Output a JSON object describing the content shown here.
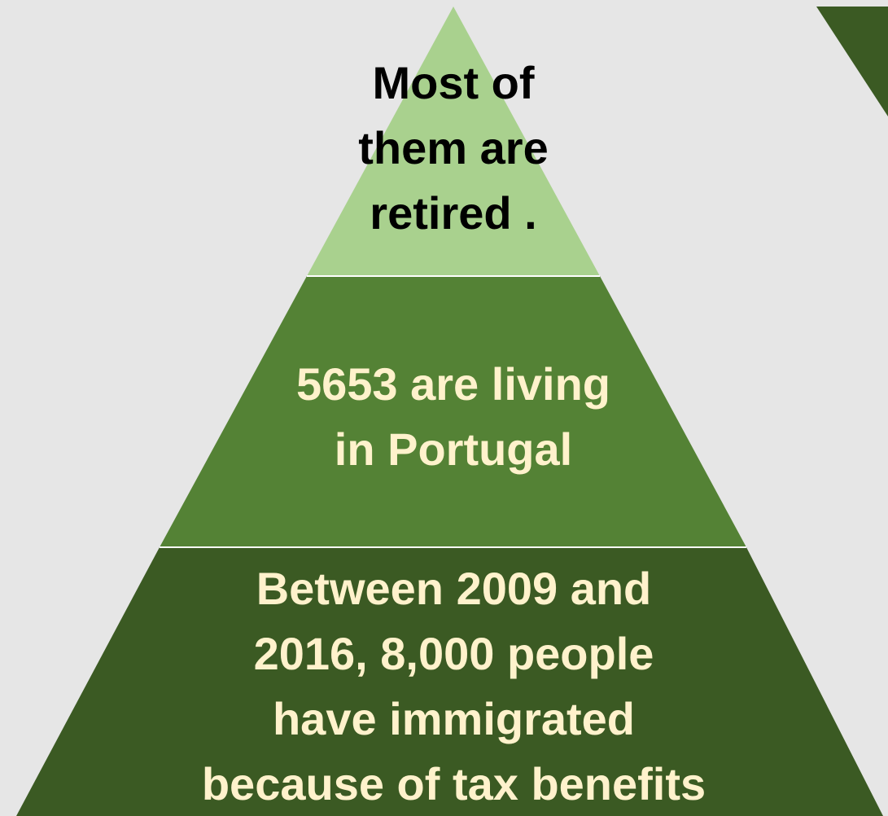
{
  "colors": {
    "background": "#e6e6e6",
    "tier_top": "#a9d18e",
    "tier_middle": "#548235",
    "tier_bottom": "#3b5a23",
    "text_dark": "#000000",
    "text_light": "#fff2cc",
    "separator": "#ffffff"
  },
  "pyramid": {
    "tiers": [
      {
        "text": "Most of\nthem are\nretired ."
      },
      {
        "text": "5653 are living\nin Portugal"
      },
      {
        "text": "Between 2009 and\n2016, 8,000 people\nhave immigrated\nbecause of tax benefits"
      }
    ]
  }
}
